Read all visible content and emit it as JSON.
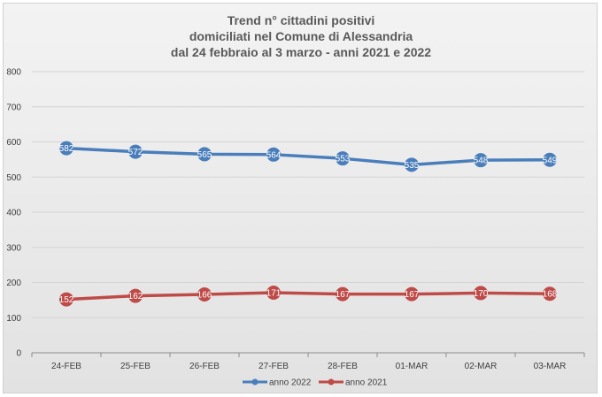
{
  "chart_data": {
    "type": "line",
    "title_lines": [
      "Trend n° cittadini positivi",
      "domiciliati nel Comune di Alessandria",
      "dal 24 febbraio al 3 marzo - anni 2021 e 2022"
    ],
    "categories": [
      "24-FEB",
      "25-FEB",
      "26-FEB",
      "27-FEB",
      "28-FEB",
      "01-MAR",
      "02-MAR",
      "03-MAR"
    ],
    "ylim": [
      0,
      800
    ],
    "yticks": [
      "0",
      "100",
      "200",
      "300",
      "400",
      "500",
      "600",
      "700",
      "800"
    ],
    "grid": true,
    "legend_position": "bottom",
    "series": [
      {
        "name": "anno 2022",
        "color": "#4a7ebb",
        "values": [
          582,
          572,
          565,
          564,
          553,
          535,
          548,
          549
        ],
        "labels": [
          "582",
          "572",
          "565",
          "564",
          "553",
          "535",
          "548",
          "549"
        ]
      },
      {
        "name": "anno 2021",
        "color": "#be4b48",
        "values": [
          152,
          162,
          166,
          171,
          167,
          167,
          170,
          168
        ],
        "labels": [
          "152",
          "162",
          "166",
          "171",
          "167",
          "167",
          "170",
          "168"
        ]
      }
    ]
  }
}
